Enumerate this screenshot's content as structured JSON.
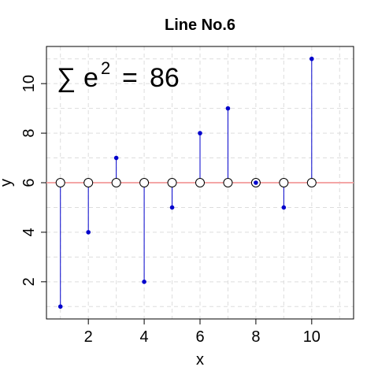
{
  "chart_data": {
    "type": "scatter",
    "title": "Line No.6",
    "xlabel": "x",
    "ylabel": "y",
    "xlim": [
      0.5,
      11.5
    ],
    "ylim": [
      0.5,
      11.5
    ],
    "xticks": [
      2,
      4,
      6,
      8,
      10
    ],
    "yticks": [
      2,
      4,
      6,
      8,
      10
    ],
    "grid": true,
    "fitted_line_y": 6,
    "points": [
      {
        "x": 1,
        "y": 1
      },
      {
        "x": 2,
        "y": 4
      },
      {
        "x": 3,
        "y": 7
      },
      {
        "x": 4,
        "y": 2
      },
      {
        "x": 5,
        "y": 5
      },
      {
        "x": 6,
        "y": 8
      },
      {
        "x": 7,
        "y": 9
      },
      {
        "x": 8,
        "y": 6
      },
      {
        "x": 9,
        "y": 5
      },
      {
        "x": 10,
        "y": 11
      }
    ],
    "annotation": {
      "sigma": "∑",
      "base": "e",
      "exponent": "2",
      "equals": "=",
      "value": "86"
    },
    "colors": {
      "points": "#0000CC",
      "residuals": "#0000CC",
      "fitted_line": "#F4A6A6",
      "grid": "#DDDDDD"
    }
  }
}
